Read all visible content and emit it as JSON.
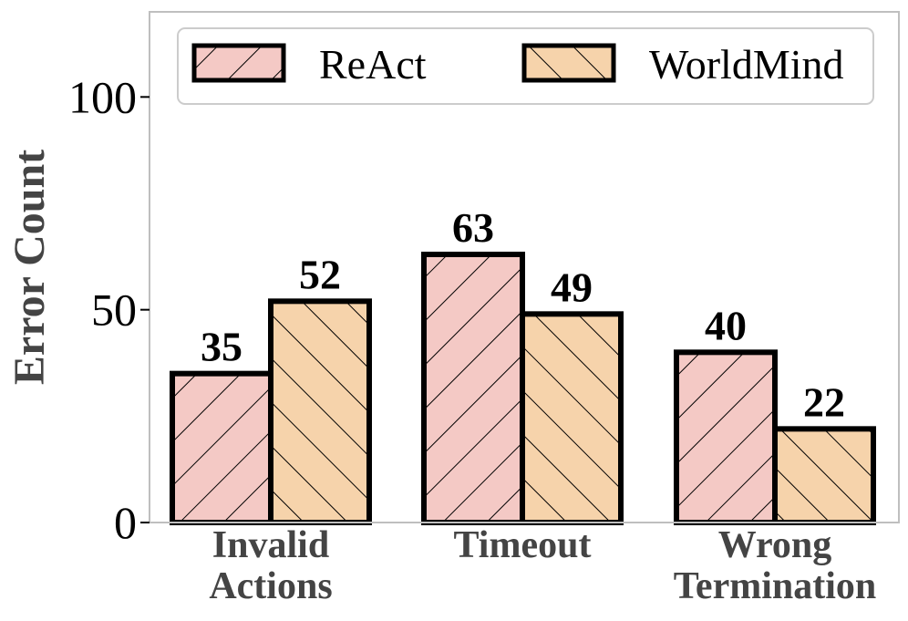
{
  "chart_data": {
    "type": "bar",
    "categories": [
      [
        "Invalid",
        "Actions"
      ],
      [
        "Timeout"
      ],
      [
        "Wrong",
        "Termination"
      ]
    ],
    "series": [
      {
        "name": "ReAct",
        "values": [
          35,
          63,
          40
        ],
        "color": "#f4c9c5",
        "hatch": "forward"
      },
      {
        "name": "WorldMind",
        "values": [
          52,
          49,
          22
        ],
        "color": "#f6d3ab",
        "hatch": "backward"
      }
    ],
    "ylabel": "Error Count",
    "ylim": [
      0,
      120
    ],
    "yticks": [
      0,
      50,
      100
    ],
    "legend": "top",
    "grid": false
  }
}
